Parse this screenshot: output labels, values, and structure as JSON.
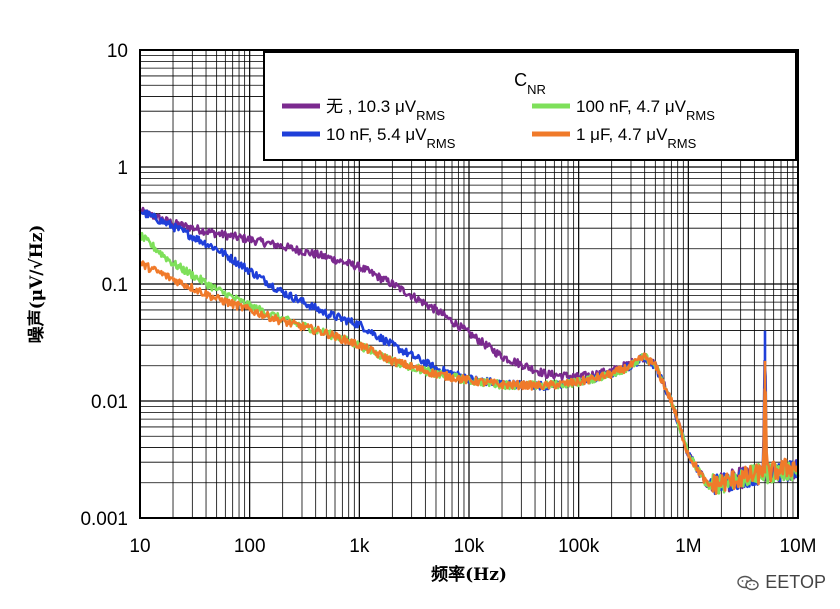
{
  "chart_data": {
    "type": "line",
    "xscale": "log",
    "yscale": "log",
    "xlim": [
      10,
      10000000
    ],
    "ylim": [
      0.001,
      10
    ],
    "x_ticks": [
      "10",
      "100",
      "1k",
      "10k",
      "100k",
      "1M",
      "10M"
    ],
    "y_ticks": [
      "10",
      "1",
      "0.1",
      "0.01",
      "0.001"
    ],
    "xlabel": "频率(Hz)",
    "ylabel": "噪声(μV/√Hz)",
    "grid": true,
    "legend": {
      "title": "CNR",
      "title_main": "C",
      "title_sub": "NR",
      "placement": "top-right",
      "entries": [
        {
          "text": "无 , 10.3 μV",
          "sub": "RMS"
        },
        {
          "text": "10 nF, 5.4 μV",
          "sub": "RMS"
        },
        {
          "text": "100 nF, 4.7  μV",
          "sub": "RMS"
        },
        {
          "text": "1 μF, 4.7  μV",
          "sub": "RMS"
        }
      ]
    },
    "series": [
      {
        "color": "#7b2a8f",
        "points": [
          [
            10,
            0.42
          ],
          [
            20,
            0.33
          ],
          [
            50,
            0.27
          ],
          [
            100,
            0.24
          ],
          [
            200,
            0.21
          ],
          [
            500,
            0.17
          ],
          [
            1000,
            0.14
          ],
          [
            2000,
            0.1
          ],
          [
            5000,
            0.06
          ],
          [
            10000,
            0.038
          ],
          [
            20000,
            0.024
          ],
          [
            50000,
            0.017
          ],
          [
            100000,
            0.016
          ],
          [
            200000,
            0.018
          ],
          [
            300000,
            0.021
          ],
          [
            400000,
            0.024
          ],
          [
            500000,
            0.02
          ],
          [
            700000,
            0.01
          ],
          [
            1000000,
            0.0035
          ],
          [
            1500000,
            0.0019
          ],
          [
            2000000,
            0.002
          ],
          [
            3000000,
            0.0022
          ],
          [
            5000000,
            0.0024
          ],
          [
            7000000,
            0.0025
          ],
          [
            10000000,
            0.0026
          ]
        ]
      },
      {
        "color": "#1f3fd9",
        "points": [
          [
            10,
            0.42
          ],
          [
            20,
            0.31
          ],
          [
            50,
            0.2
          ],
          [
            100,
            0.13
          ],
          [
            200,
            0.085
          ],
          [
            500,
            0.056
          ],
          [
            1000,
            0.045
          ],
          [
            2000,
            0.03
          ],
          [
            5000,
            0.019
          ],
          [
            10000,
            0.0155
          ],
          [
            20000,
            0.014
          ],
          [
            50000,
            0.0135
          ],
          [
            100000,
            0.0145
          ],
          [
            200000,
            0.017
          ],
          [
            300000,
            0.02
          ],
          [
            400000,
            0.024
          ],
          [
            500000,
            0.02
          ],
          [
            700000,
            0.01
          ],
          [
            1000000,
            0.0035
          ],
          [
            1500000,
            0.0019
          ],
          [
            2000000,
            0.002
          ],
          [
            3000000,
            0.0022
          ],
          [
            4800000,
            0.0024
          ],
          [
            5000000,
            0.04
          ],
          [
            5200000,
            0.0024
          ],
          [
            7000000,
            0.0025
          ],
          [
            10000000,
            0.0026
          ]
        ]
      },
      {
        "color": "#7ee05a",
        "points": [
          [
            10,
            0.26
          ],
          [
            20,
            0.15
          ],
          [
            50,
            0.09
          ],
          [
            100,
            0.065
          ],
          [
            200,
            0.05
          ],
          [
            500,
            0.038
          ],
          [
            1000,
            0.03
          ],
          [
            2000,
            0.022
          ],
          [
            5000,
            0.017
          ],
          [
            10000,
            0.015
          ],
          [
            20000,
            0.0138
          ],
          [
            50000,
            0.0135
          ],
          [
            100000,
            0.0145
          ],
          [
            200000,
            0.017
          ],
          [
            300000,
            0.02
          ],
          [
            400000,
            0.024
          ],
          [
            500000,
            0.02
          ],
          [
            700000,
            0.01
          ],
          [
            1000000,
            0.0035
          ],
          [
            1500000,
            0.0019
          ],
          [
            2000000,
            0.002
          ],
          [
            3000000,
            0.0022
          ],
          [
            5000000,
            0.0024
          ],
          [
            7000000,
            0.0025
          ],
          [
            10000000,
            0.0026
          ]
        ]
      },
      {
        "color": "#f07a2a",
        "points": [
          [
            10,
            0.15
          ],
          [
            20,
            0.11
          ],
          [
            50,
            0.075
          ],
          [
            100,
            0.06
          ],
          [
            200,
            0.048
          ],
          [
            500,
            0.038
          ],
          [
            1000,
            0.03
          ],
          [
            2000,
            0.022
          ],
          [
            5000,
            0.017
          ],
          [
            10000,
            0.015
          ],
          [
            20000,
            0.0138
          ],
          [
            50000,
            0.0135
          ],
          [
            100000,
            0.0145
          ],
          [
            200000,
            0.017
          ],
          [
            300000,
            0.02
          ],
          [
            400000,
            0.024
          ],
          [
            500000,
            0.02
          ],
          [
            700000,
            0.01
          ],
          [
            1000000,
            0.0035
          ],
          [
            1500000,
            0.0019
          ],
          [
            2000000,
            0.002
          ],
          [
            3000000,
            0.0022
          ],
          [
            4800000,
            0.0024
          ],
          [
            5000000,
            0.022
          ],
          [
            5200000,
            0.0024
          ],
          [
            7000000,
            0.0026
          ],
          [
            10000000,
            0.0028
          ]
        ]
      }
    ]
  },
  "watermark": {
    "text": "EETOP",
    "icon": "wechat-icon"
  }
}
